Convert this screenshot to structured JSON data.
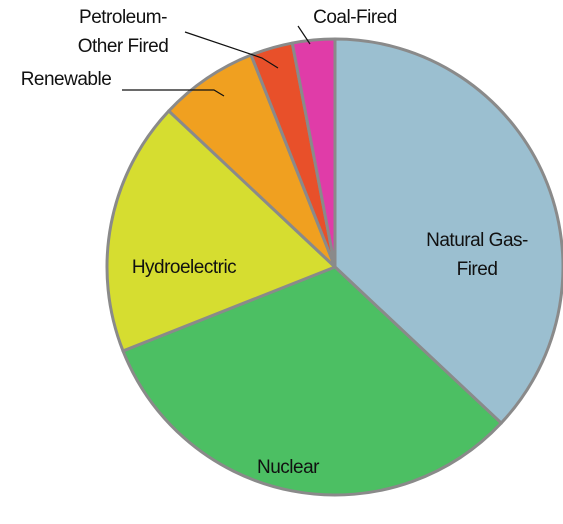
{
  "chart_data": {
    "type": "pie",
    "categories": [
      "Natural Gas-Fired",
      "Nuclear",
      "Hydroelectric",
      "Renewable",
      "Petroleum-Other Fired",
      "Coal-Fired"
    ],
    "values": [
      37,
      32,
      18,
      7,
      3,
      3
    ],
    "colors": [
      "#9bbfd0",
      "#4cbf63",
      "#d6dd30",
      "#f0a020",
      "#e8502a",
      "#e03ca8"
    ]
  }
}
